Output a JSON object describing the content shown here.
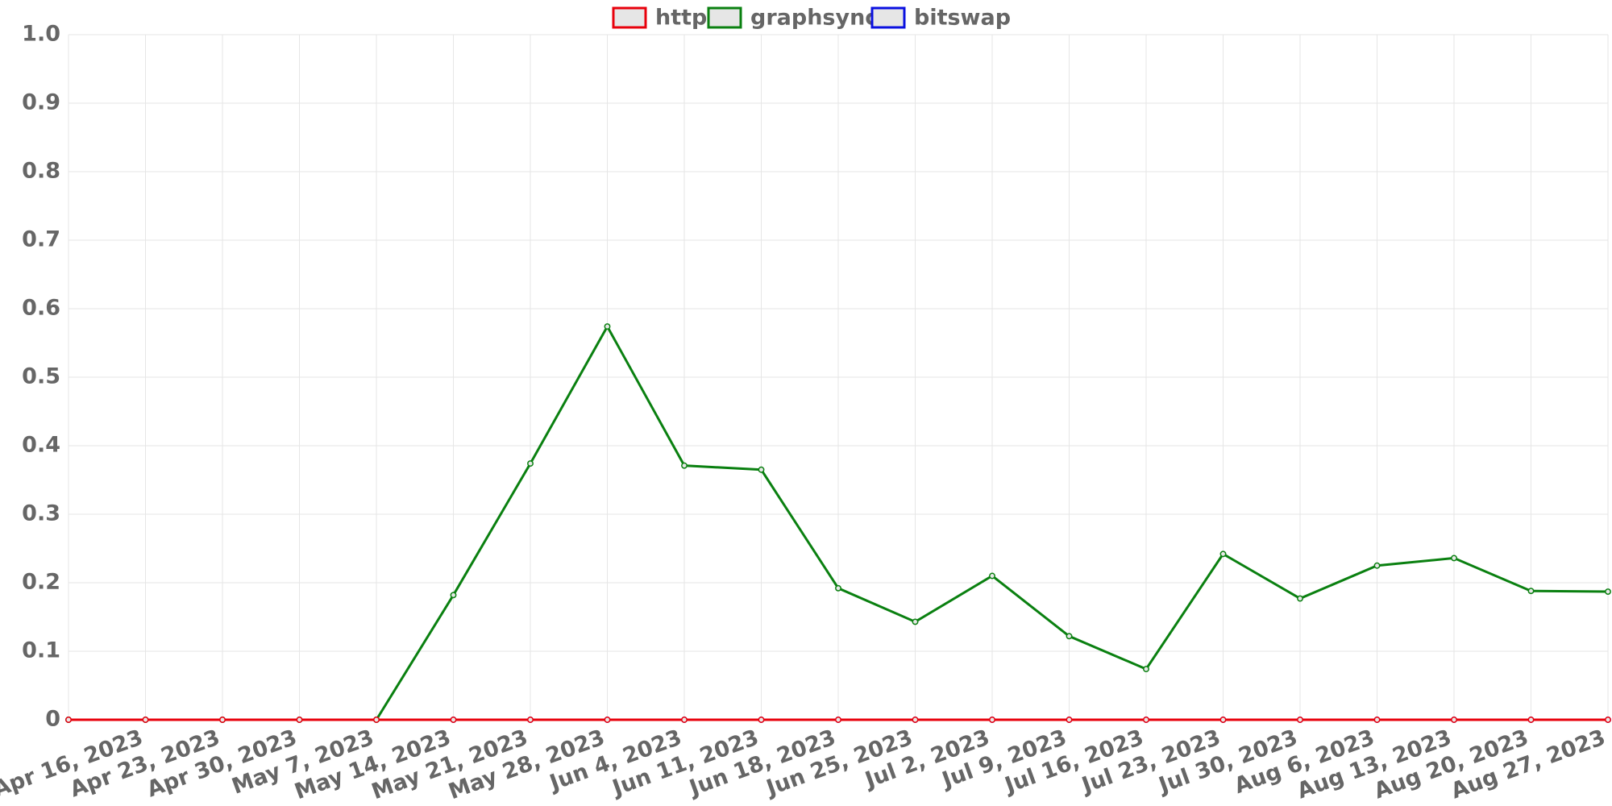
{
  "chart_data": {
    "type": "line",
    "categories": [
      null,
      "Apr 16, 2023",
      "Apr 23, 2023",
      "Apr 30, 2023",
      "May 7, 2023",
      "May 14, 2023",
      "May 21, 2023",
      "May 28, 2023",
      "Jun 4, 2023",
      "Jun 11, 2023",
      "Jun 18, 2023",
      "Jun 25, 2023",
      "Jul 2, 2023",
      "Jul 9, 2023",
      "Jul 16, 2023",
      "Jul 23, 2023",
      "Jul 30, 2023",
      "Aug 6, 2023",
      "Aug 13, 2023",
      "Aug 20, 2023",
      "Aug 27, 2023"
    ],
    "series": [
      {
        "name": "http",
        "color": "#e8000b",
        "values": [
          0,
          0,
          0,
          0,
          0,
          0,
          0,
          0,
          0,
          0,
          0,
          0,
          0,
          0,
          0,
          0,
          0,
          0,
          0,
          0,
          0
        ]
      },
      {
        "name": "graphsync",
        "color": "#0a8010",
        "values": [
          0,
          0,
          0,
          0,
          0,
          0.182,
          0.374,
          0.574,
          0.371,
          0.365,
          0.192,
          0.143,
          0.21,
          0.122,
          0.074,
          0.242,
          0.177,
          0.225,
          0.236,
          0.188,
          0.187
        ]
      },
      {
        "name": "bitswap",
        "color": "#0a10e0",
        "values": [
          0,
          0,
          0,
          0,
          0,
          0,
          0,
          0,
          0,
          0,
          0,
          0,
          0,
          0,
          0,
          0,
          0,
          0,
          0,
          0,
          0
        ]
      }
    ],
    "ylim": [
      0,
      1
    ],
    "yticks": [
      0,
      0.1,
      0.2,
      0.3,
      0.4,
      0.5,
      0.6,
      0.7,
      0.8,
      0.9,
      {
        "value": 1,
        "label": "1.0"
      }
    ],
    "grid": true,
    "legend": "top"
  }
}
